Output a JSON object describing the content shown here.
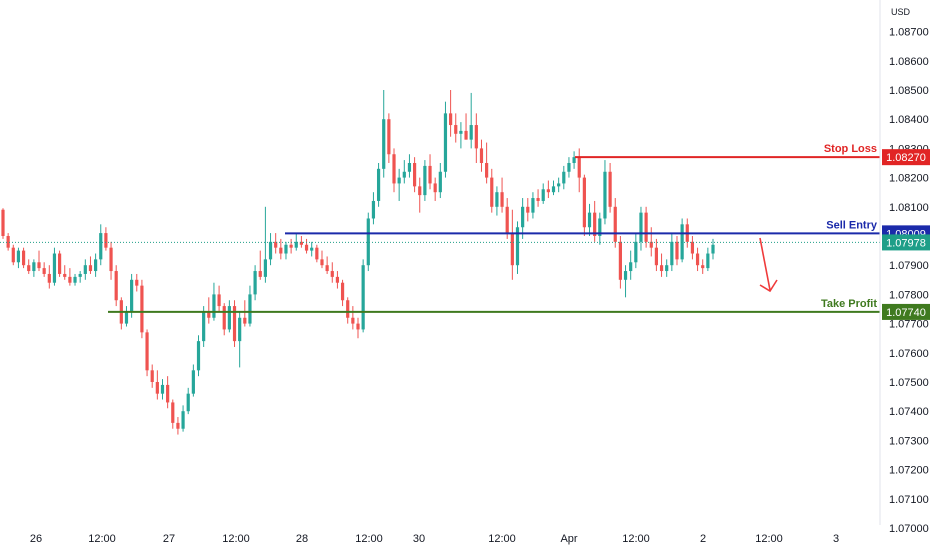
{
  "chart_data": {
    "type": "candlestick",
    "currency_label": "USD",
    "y_ticks": [
      "1.07000",
      "1.07100",
      "1.07200",
      "1.07300",
      "1.07400",
      "1.07500",
      "1.07600",
      "1.07700",
      "1.07800",
      "1.07900",
      "1.08000",
      "1.08100",
      "1.08200",
      "1.08300",
      "1.08400",
      "1.08500",
      "1.08600",
      "1.08700"
    ],
    "ylim": [
      1.07,
      1.0873
    ],
    "x_ticks": [
      "26",
      "12:00",
      "27",
      "12:00",
      "28",
      "12:00",
      "30",
      "12:00",
      "Apr",
      "12:00",
      "2",
      "12:00",
      "3"
    ],
    "levels": [
      {
        "name": "Stop Loss",
        "price": "1.08270",
        "value": 1.0827,
        "color": "#e12525"
      },
      {
        "name": "Sell Entry",
        "price": "1.08009",
        "value": 1.08009,
        "color": "#1b2aaa"
      },
      {
        "name": "Take Profit",
        "price": "1.07740",
        "value": 1.0774,
        "color": "#3f7a1f"
      }
    ],
    "current_price": {
      "price": "1.07978",
      "value": 1.07978,
      "color": "#1e9e88"
    },
    "up_color": "#26a69a",
    "down_color": "#ef5350",
    "arrow_color": "#ef3b3b",
    "candles": [
      [
        1.0809,
        1.08095,
        1.0799,
        1.08
      ],
      [
        1.08,
        1.0801,
        1.0795,
        1.0796
      ],
      [
        1.0796,
        1.0797,
        1.079,
        1.0791
      ],
      [
        1.0791,
        1.0796,
        1.0789,
        1.0795
      ],
      [
        1.0795,
        1.0796,
        1.0789,
        1.079
      ],
      [
        1.079,
        1.0792,
        1.0787,
        1.0788
      ],
      [
        1.0788,
        1.0792,
        1.0786,
        1.0791
      ],
      [
        1.0791,
        1.0795,
        1.0788,
        1.0789
      ],
      [
        1.0789,
        1.0791,
        1.0786,
        1.0787
      ],
      [
        1.0787,
        1.079,
        1.0782,
        1.0784
      ],
      [
        1.0784,
        1.0796,
        1.0783,
        1.0794
      ],
      [
        1.0794,
        1.0795,
        1.0786,
        1.0787
      ],
      [
        1.0787,
        1.079,
        1.0785,
        1.0786
      ],
      [
        1.0786,
        1.0789,
        1.0783,
        1.0784
      ],
      [
        1.0784,
        1.0787,
        1.0783,
        1.0786
      ],
      [
        1.0786,
        1.0788,
        1.0784,
        1.0787
      ],
      [
        1.0787,
        1.0792,
        1.0785,
        1.079
      ],
      [
        1.079,
        1.0793,
        1.0787,
        1.0788
      ],
      [
        1.0788,
        1.0794,
        1.0786,
        1.0792
      ],
      [
        1.0792,
        1.0804,
        1.079,
        1.0801
      ],
      [
        1.0801,
        1.0803,
        1.0795,
        1.0796
      ],
      [
        1.0796,
        1.0798,
        1.0785,
        1.0788
      ],
      [
        1.0788,
        1.079,
        1.0776,
        1.0778
      ],
      [
        1.0778,
        1.0779,
        1.0768,
        1.077
      ],
      [
        1.077,
        1.0776,
        1.0769,
        1.0774
      ],
      [
        1.0774,
        1.0787,
        1.0772,
        1.0785
      ],
      [
        1.0785,
        1.0787,
        1.0781,
        1.0783
      ],
      [
        1.0783,
        1.0785,
        1.0765,
        1.0767
      ],
      [
        1.0767,
        1.0768,
        1.0752,
        1.0754
      ],
      [
        1.0754,
        1.0756,
        1.0748,
        1.075
      ],
      [
        1.075,
        1.0754,
        1.0744,
        1.0746
      ],
      [
        1.0746,
        1.0751,
        1.0744,
        1.0749
      ],
      [
        1.0749,
        1.0752,
        1.0741,
        1.0743
      ],
      [
        1.0743,
        1.0744,
        1.0734,
        1.0736
      ],
      [
        1.0736,
        1.0738,
        1.0732,
        1.0734
      ],
      [
        1.0734,
        1.0742,
        1.0733,
        1.074
      ],
      [
        1.074,
        1.0748,
        1.0739,
        1.0746
      ],
      [
        1.0746,
        1.0756,
        1.0745,
        1.0754
      ],
      [
        1.0754,
        1.0766,
        1.0752,
        1.0764
      ],
      [
        1.0764,
        1.0776,
        1.0762,
        1.0774
      ],
      [
        1.0774,
        1.0779,
        1.077,
        1.0772
      ],
      [
        1.0772,
        1.0784,
        1.0771,
        1.078
      ],
      [
        1.078,
        1.0783,
        1.0774,
        1.0776
      ],
      [
        1.0776,
        1.0777,
        1.0766,
        1.0768
      ],
      [
        1.0768,
        1.0778,
        1.0767,
        1.0776
      ],
      [
        1.0776,
        1.0778,
        1.0762,
        1.0764
      ],
      [
        1.0764,
        1.0774,
        1.0755,
        1.0772
      ],
      [
        1.0772,
        1.0778,
        1.0769,
        1.077
      ],
      [
        1.077,
        1.0783,
        1.0769,
        1.078
      ],
      [
        1.078,
        1.079,
        1.0778,
        1.0788
      ],
      [
        1.0788,
        1.0795,
        1.0785,
        1.0786
      ],
      [
        1.0786,
        1.081,
        1.0784,
        1.0792
      ],
      [
        1.0792,
        1.0801,
        1.079,
        1.0798
      ],
      [
        1.0798,
        1.0801,
        1.0794,
        1.0796
      ],
      [
        1.0796,
        1.0799,
        1.0792,
        1.0794
      ],
      [
        1.0794,
        1.0798,
        1.0792,
        1.0797
      ],
      [
        1.0797,
        1.0799,
        1.0794,
        1.0796
      ],
      [
        1.0796,
        1.0801,
        1.0795,
        1.0798
      ],
      [
        1.0798,
        1.08,
        1.0796,
        1.0797
      ],
      [
        1.0797,
        1.0799,
        1.0794,
        1.0795
      ],
      [
        1.0795,
        1.0798,
        1.0793,
        1.0796
      ],
      [
        1.0796,
        1.0797,
        1.0791,
        1.0792
      ],
      [
        1.0792,
        1.0795,
        1.0789,
        1.079
      ],
      [
        1.079,
        1.0793,
        1.0787,
        1.0788
      ],
      [
        1.0788,
        1.0791,
        1.0784,
        1.0786
      ],
      [
        1.0786,
        1.0788,
        1.0782,
        1.0784
      ],
      [
        1.0784,
        1.0785,
        1.0776,
        1.0778
      ],
      [
        1.0778,
        1.0779,
        1.077,
        1.0772
      ],
      [
        1.0772,
        1.0776,
        1.0768,
        1.077
      ],
      [
        1.077,
        1.0772,
        1.0765,
        1.0768
      ],
      [
        1.0768,
        1.0792,
        1.0767,
        1.079
      ],
      [
        1.079,
        1.0808,
        1.0788,
        1.0806
      ],
      [
        1.0806,
        1.0815,
        1.0804,
        1.0812
      ],
      [
        1.0812,
        1.0825,
        1.081,
        1.0823
      ],
      [
        1.0823,
        1.085,
        1.082,
        1.084
      ],
      [
        1.084,
        1.0842,
        1.0825,
        1.0828
      ],
      [
        1.0828,
        1.083,
        1.0815,
        1.0818
      ],
      [
        1.0818,
        1.0823,
        1.0812,
        1.082
      ],
      [
        1.082,
        1.0826,
        1.0818,
        1.0822
      ],
      [
        1.0822,
        1.0828,
        1.082,
        1.0825
      ],
      [
        1.0825,
        1.0827,
        1.0815,
        1.0817
      ],
      [
        1.0817,
        1.082,
        1.0808,
        1.0814
      ],
      [
        1.0814,
        1.0826,
        1.0812,
        1.0824
      ],
      [
        1.0824,
        1.0828,
        1.0816,
        1.0818
      ],
      [
        1.0818,
        1.082,
        1.0812,
        1.0815
      ],
      [
        1.0815,
        1.0825,
        1.0813,
        1.0822
      ],
      [
        1.0822,
        1.0846,
        1.082,
        1.0842
      ],
      [
        1.0842,
        1.085,
        1.0834,
        1.0838
      ],
      [
        1.0838,
        1.0842,
        1.0832,
        1.0835
      ],
      [
        1.0835,
        1.0839,
        1.083,
        1.0836
      ],
      [
        1.0836,
        1.0842,
        1.0833,
        1.0833
      ],
      [
        1.0833,
        1.0849,
        1.083,
        1.0838
      ],
      [
        1.0838,
        1.0842,
        1.0825,
        1.083
      ],
      [
        1.083,
        1.0833,
        1.0822,
        1.0825
      ],
      [
        1.0825,
        1.0832,
        1.0818,
        1.082
      ],
      [
        1.082,
        1.0823,
        1.0808,
        1.081
      ],
      [
        1.081,
        1.0817,
        1.0807,
        1.0815
      ],
      [
        1.0815,
        1.082,
        1.0808,
        1.081
      ],
      [
        1.081,
        1.0813,
        1.0799,
        1.0801
      ],
      [
        1.0801,
        1.0809,
        1.0785,
        1.079
      ],
      [
        1.079,
        1.0805,
        1.0787,
        1.0803
      ],
      [
        1.0803,
        1.0813,
        1.0799,
        1.081
      ],
      [
        1.081,
        1.0813,
        1.0805,
        1.0808
      ],
      [
        1.0808,
        1.0815,
        1.0806,
        1.0813
      ],
      [
        1.0813,
        1.0816,
        1.081,
        1.0812
      ],
      [
        1.0812,
        1.0818,
        1.0811,
        1.0816
      ],
      [
        1.0816,
        1.0819,
        1.0813,
        1.0815
      ],
      [
        1.0815,
        1.0819,
        1.0814,
        1.0817
      ],
      [
        1.0817,
        1.082,
        1.0815,
        1.0818
      ],
      [
        1.0818,
        1.0824,
        1.0816,
        1.0822
      ],
      [
        1.0822,
        1.0827,
        1.082,
        1.0825
      ],
      [
        1.0825,
        1.0829,
        1.0823,
        1.0827
      ],
      [
        1.0827,
        1.083,
        1.0815,
        1.082
      ],
      [
        1.082,
        1.0821,
        1.08,
        1.0803
      ],
      [
        1.0803,
        1.0811,
        1.08,
        1.0808
      ],
      [
        1.0808,
        1.0812,
        1.0798,
        1.08
      ],
      [
        1.08,
        1.0808,
        1.0797,
        1.0806
      ],
      [
        1.0806,
        1.0826,
        1.0804,
        1.0822
      ],
      [
        1.0822,
        1.0825,
        1.0808,
        1.081
      ],
      [
        1.081,
        1.0813,
        1.0796,
        1.0798
      ],
      [
        1.0798,
        1.08,
        1.0782,
        1.0785
      ],
      [
        1.0785,
        1.079,
        1.0779,
        1.0788
      ],
      [
        1.0788,
        1.0795,
        1.0785,
        1.0791
      ],
      [
        1.0791,
        1.0801,
        1.0789,
        1.0798
      ],
      [
        1.0798,
        1.081,
        1.0795,
        1.0808
      ],
      [
        1.0808,
        1.081,
        1.0796,
        1.0798
      ],
      [
        1.0798,
        1.0803,
        1.0793,
        1.0796
      ],
      [
        1.0796,
        1.0799,
        1.0788,
        1.079
      ],
      [
        1.079,
        1.0794,
        1.0786,
        1.0788
      ],
      [
        1.0788,
        1.0792,
        1.0786,
        1.079
      ],
      [
        1.079,
        1.0801,
        1.0788,
        1.0798
      ],
      [
        1.0798,
        1.08,
        1.079,
        1.0792
      ],
      [
        1.0792,
        1.0806,
        1.0791,
        1.0804
      ],
      [
        1.0804,
        1.0806,
        1.0796,
        1.0798
      ],
      [
        1.0798,
        1.08,
        1.0792,
        1.0794
      ],
      [
        1.0794,
        1.0796,
        1.0788,
        1.079
      ],
      [
        1.079,
        1.0792,
        1.0787,
        1.0789
      ],
      [
        1.0789,
        1.0796,
        1.0788,
        1.0794
      ],
      [
        1.0794,
        1.0799,
        1.0792,
        1.0797
      ]
    ]
  }
}
